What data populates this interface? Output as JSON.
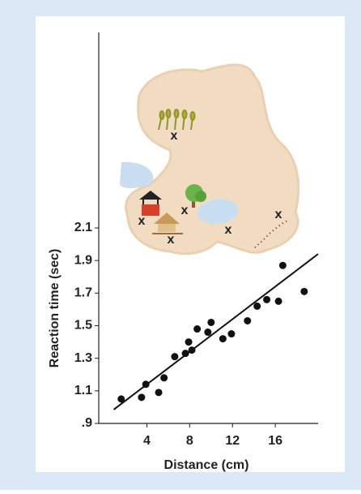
{
  "chart_data": {
    "type": "scatter",
    "x": [
      1.6,
      3.5,
      3.9,
      5.1,
      5.6,
      6.6,
      7.6,
      7.9,
      8.2,
      8.7,
      9.7,
      10.0,
      11.1,
      11.9,
      13.4,
      14.3,
      15.2,
      16.3,
      16.7,
      18.7
    ],
    "series": [
      {
        "color": "#111111",
        "values": [
          1.05,
          1.06,
          1.14,
          1.09,
          1.18,
          1.31,
          1.33,
          1.4,
          1.35,
          1.48,
          1.46,
          1.52,
          1.42,
          1.45,
          1.53,
          1.62,
          1.66,
          1.65,
          1.87,
          1.71
        ]
      }
    ],
    "trend_line": {
      "x": [
        0.9,
        20
      ],
      "y": [
        0.985,
        1.94
      ],
      "color": "#111111"
    },
    "x_label": "Distance (cm)",
    "y_label": "Reaction time (sec)",
    "xlim": [
      -0.5,
      20
    ],
    "xticks": [
      4,
      8,
      12,
      16
    ],
    "ylim": [
      0.9,
      3.3
    ],
    "yticks": [
      {
        "value": 0.9,
        "label": ".9"
      },
      1.1,
      1.3,
      1.5,
      1.7,
      1.9,
      2.1
    ],
    "map_markers": [
      "x",
      "x",
      "x",
      "x",
      "x",
      "x"
    ]
  }
}
